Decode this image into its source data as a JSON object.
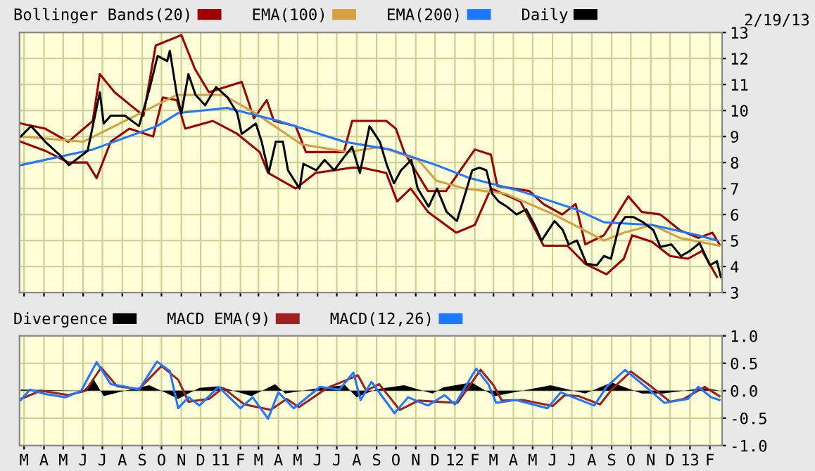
{
  "chart_data": [
    {
      "type": "line",
      "annotations": [
        "2/19/13"
      ],
      "xlim": [
        "2010-02-22",
        "2013-02-20"
      ],
      "xticks": [
        {
          "value": "2010-03-01",
          "label": null
        },
        {
          "value": "2010-04-01",
          "label": null
        },
        {
          "value": "2010-05-01",
          "label": null
        },
        {
          "value": "2010-06-01",
          "label": null
        },
        {
          "value": "2010-07-01",
          "label": null
        },
        {
          "value": "2010-08-01",
          "label": null
        },
        {
          "value": "2010-09-01",
          "label": null
        },
        {
          "value": "2010-10-01",
          "label": null
        },
        {
          "value": "2010-11-01",
          "label": null
        },
        {
          "value": "2010-12-01",
          "label": null
        },
        {
          "value": "2011-01-01",
          "label": null
        },
        {
          "value": "2011-02-01",
          "label": null
        },
        {
          "value": "2011-03-01",
          "label": null
        },
        {
          "value": "2011-04-01",
          "label": null
        },
        {
          "value": "2011-05-01",
          "label": null
        },
        {
          "value": "2011-06-01",
          "label": null
        },
        {
          "value": "2011-07-01",
          "label": null
        },
        {
          "value": "2011-08-01",
          "label": null
        },
        {
          "value": "2011-09-01",
          "label": null
        },
        {
          "value": "2011-10-01",
          "label": null
        },
        {
          "value": "2011-11-01",
          "label": null
        },
        {
          "value": "2011-12-01",
          "label": null
        },
        {
          "value": "2012-01-01",
          "label": null
        },
        {
          "value": "2012-02-01",
          "label": null
        },
        {
          "value": "2012-03-01",
          "label": null
        },
        {
          "value": "2012-04-01",
          "label": null
        },
        {
          "value": "2012-05-01",
          "label": null
        },
        {
          "value": "2012-06-01",
          "label": null
        },
        {
          "value": "2012-07-01",
          "label": null
        },
        {
          "value": "2012-08-01",
          "label": null
        },
        {
          "value": "2012-09-01",
          "label": null
        },
        {
          "value": "2012-10-01",
          "label": null
        },
        {
          "value": "2012-11-01",
          "label": null
        },
        {
          "value": "2012-12-01",
          "label": null
        },
        {
          "value": "2013-01-01",
          "label": null
        },
        {
          "value": "2013-02-01",
          "label": null
        }
      ],
      "ylim": [
        3,
        13
      ],
      "yticks": [
        3,
        4,
        5,
        6,
        7,
        8,
        9,
        10,
        11,
        12,
        13
      ],
      "grid": true,
      "legend": "top",
      "tick_labels": "y",
      "series": [
        {
          "name": "Bollinger Bands(20)",
          "color": "#a00000",
          "x": [
            "2010-02-24",
            "2010-04-03",
            "2010-05-09",
            "2010-06-16",
            "2010-06-27",
            "2010-07-20",
            "2010-09-03",
            "2010-09-22",
            "2010-11-01",
            "2010-11-22",
            "2010-12-14",
            "2011-02-03",
            "2011-02-22",
            "2011-03-14",
            "2011-03-25",
            "2011-04-28",
            "2011-05-14",
            "2011-07-12",
            "2011-07-25",
            "2011-09-16",
            "2011-10-01",
            "2011-10-14",
            "2011-11-20",
            "2011-12-18",
            "2012-02-01",
            "2012-02-26",
            "2012-03-07",
            "2012-04-26",
            "2012-05-18",
            "2012-06-16",
            "2012-07-07",
            "2012-07-22",
            "2012-08-20",
            "2012-09-12",
            "2012-09-27",
            "2012-10-18",
            "2012-11-16",
            "2012-12-16",
            "2013-01-14",
            "2013-02-05",
            "2013-02-16"
          ],
          "values": [
            9.5,
            9.3,
            8.8,
            9.6,
            11.4,
            10.7,
            9.8,
            12.5,
            12.9,
            11.6,
            10.7,
            11.1,
            9.7,
            10.4,
            9.6,
            9.4,
            8.4,
            8.4,
            9.6,
            9.6,
            9.3,
            8.4,
            6.9,
            6.9,
            8.5,
            8.3,
            7.1,
            6.9,
            6.4,
            6.0,
            6.4,
            4.85,
            5.2,
            6.1,
            6.7,
            6.1,
            6.0,
            5.4,
            5.1,
            5.3,
            4.85
          ]
        },
        {
          "color": "#a00000",
          "x": [
            "2010-02-24",
            "2010-04-03",
            "2010-05-09",
            "2010-06-07",
            "2010-06-22",
            "2010-07-14",
            "2010-08-12",
            "2010-09-18",
            "2010-10-03",
            "2010-10-25",
            "2010-11-07",
            "2010-12-20",
            "2011-01-27",
            "2011-03-03",
            "2011-03-16",
            "2011-04-28",
            "2011-05-29",
            "2011-07-25",
            "2011-08-09",
            "2011-09-16",
            "2011-10-03",
            "2011-10-24",
            "2011-11-20",
            "2012-01-03",
            "2012-02-01",
            "2012-02-26",
            "2012-04-12",
            "2012-05-18",
            "2012-06-24",
            "2012-07-22",
            "2012-08-24",
            "2012-09-20",
            "2012-10-03",
            "2012-11-03",
            "2012-12-01",
            "2012-12-29",
            "2013-01-20",
            "2013-02-12"
          ],
          "values": [
            8.8,
            8.45,
            8.0,
            8.0,
            7.4,
            8.8,
            9.3,
            9.0,
            10.5,
            10.4,
            9.3,
            9.6,
            9.1,
            8.4,
            7.6,
            7.0,
            7.6,
            7.8,
            7.8,
            7.6,
            6.5,
            7.0,
            6.1,
            5.3,
            5.6,
            7.0,
            6.5,
            4.8,
            4.8,
            4.1,
            3.7,
            4.3,
            5.2,
            4.95,
            4.4,
            4.3,
            4.6,
            3.6
          ]
        },
        {
          "name": "EMA(100)",
          "color": "#d4a040",
          "x": [
            "2010-02-24",
            "2010-06-01",
            "2010-07-20",
            "2010-10-25",
            "2011-01-05",
            "2011-02-24",
            "2011-05-07",
            "2011-07-18",
            "2011-09-07",
            "2011-11-05",
            "2011-12-03",
            "2012-01-16",
            "2012-03-20",
            "2012-06-03",
            "2012-08-20",
            "2012-09-20",
            "2012-11-03",
            "2012-12-16",
            "2013-02-16"
          ],
          "values": [
            9.0,
            8.8,
            9.4,
            10.6,
            10.6,
            9.9,
            8.7,
            8.4,
            8.6,
            8.1,
            7.3,
            7.0,
            6.8,
            6.0,
            5.0,
            5.3,
            5.6,
            5.1,
            4.8
          ]
        },
        {
          "name": "EMA(200)",
          "color": "#1e78ff",
          "x": [
            "2010-02-24",
            "2010-06-16",
            "2010-09-24",
            "2010-10-27",
            "2011-01-11",
            "2011-04-01",
            "2011-07-12",
            "2011-09-22",
            "2011-12-03",
            "2012-01-24",
            "2012-04-12",
            "2012-07-07",
            "2012-08-20",
            "2012-11-03",
            "2013-01-14",
            "2013-02-12"
          ],
          "values": [
            7.9,
            8.5,
            9.4,
            9.9,
            10.1,
            9.6,
            8.8,
            8.5,
            7.9,
            7.4,
            6.9,
            6.2,
            5.7,
            5.6,
            5.2,
            5.0
          ]
        },
        {
          "name": "Daily",
          "color": "#000000",
          "x": [
            "2010-02-24",
            "2010-03-12",
            "2010-04-03",
            "2010-04-25",
            "2010-05-10",
            "2010-06-08",
            "2010-06-27",
            "2010-07-03",
            "2010-07-14",
            "2010-08-05",
            "2010-08-27",
            "2010-09-12",
            "2010-09-25",
            "2010-10-10",
            "2010-10-14",
            "2010-10-25",
            "2010-11-01",
            "2010-11-12",
            "2010-11-23",
            "2010-12-08",
            "2010-12-25",
            "2011-01-12",
            "2011-01-27",
            "2011-02-03",
            "2011-02-25",
            "2011-03-06",
            "2011-03-17",
            "2011-03-28",
            "2011-04-08",
            "2011-04-16",
            "2011-05-04",
            "2011-05-10",
            "2011-05-30",
            "2011-06-12",
            "2011-06-27",
            "2011-07-12",
            "2011-07-25",
            "2011-08-06",
            "2011-08-21",
            "2011-09-06",
            "2011-09-17",
            "2011-09-28",
            "2011-10-09",
            "2011-10-25",
            "2011-11-04",
            "2011-11-21",
            "2011-12-04",
            "2011-12-19",
            "2012-01-04",
            "2012-01-17",
            "2012-01-28",
            "2012-02-08",
            "2012-02-19",
            "2012-02-28",
            "2012-03-09",
            "2012-03-22",
            "2012-04-06",
            "2012-04-21",
            "2012-05-04",
            "2012-05-15",
            "2012-06-04",
            "2012-06-17",
            "2012-06-26",
            "2012-07-09",
            "2012-07-24",
            "2012-08-09",
            "2012-08-20",
            "2012-08-31",
            "2012-09-13",
            "2012-09-22",
            "2012-10-05",
            "2012-10-20",
            "2012-11-05",
            "2012-11-16",
            "2012-12-03",
            "2012-12-18",
            "2013-01-01",
            "2013-01-16",
            "2013-02-01",
            "2013-02-12",
            "2013-02-18"
          ],
          "values": [
            9.0,
            9.4,
            8.8,
            8.3,
            7.9,
            8.45,
            10.7,
            9.5,
            9.8,
            9.8,
            9.4,
            10.8,
            12.1,
            11.9,
            12.3,
            10.6,
            9.9,
            11.4,
            10.6,
            10.2,
            10.9,
            10.5,
            9.9,
            9.1,
            9.5,
            8.8,
            7.6,
            8.8,
            8.8,
            7.7,
            7.0,
            7.95,
            7.7,
            8.1,
            7.7,
            8.2,
            8.6,
            7.6,
            9.4,
            8.8,
            7.9,
            7.2,
            7.7,
            8.1,
            7.0,
            6.3,
            7.0,
            6.1,
            5.75,
            6.8,
            7.7,
            7.8,
            7.7,
            6.8,
            6.5,
            6.3,
            6.0,
            6.2,
            5.6,
            5.0,
            5.75,
            5.4,
            4.85,
            5.0,
            4.1,
            4.05,
            4.4,
            4.3,
            5.6,
            5.9,
            5.9,
            5.7,
            5.4,
            4.75,
            4.85,
            4.4,
            4.6,
            4.9,
            4.05,
            4.2,
            3.6
          ]
        }
      ]
    },
    {
      "type": "line",
      "xlim": [
        "2010-02-22",
        "2013-02-20"
      ],
      "xticks": [
        {
          "value": "2010-03-01",
          "label": "M"
        },
        {
          "value": "2010-04-01",
          "label": "A"
        },
        {
          "value": "2010-05-01",
          "label": "M"
        },
        {
          "value": "2010-06-01",
          "label": "J"
        },
        {
          "value": "2010-07-01",
          "label": "J"
        },
        {
          "value": "2010-08-01",
          "label": "A"
        },
        {
          "value": "2010-09-01",
          "label": "S"
        },
        {
          "value": "2010-10-01",
          "label": "O"
        },
        {
          "value": "2010-11-01",
          "label": "N"
        },
        {
          "value": "2010-12-01",
          "label": "D"
        },
        {
          "value": "2011-01-01",
          "label": "11"
        },
        {
          "value": "2011-02-01",
          "label": "F"
        },
        {
          "value": "2011-03-01",
          "label": "M"
        },
        {
          "value": "2011-04-01",
          "label": "A"
        },
        {
          "value": "2011-05-01",
          "label": "M"
        },
        {
          "value": "2011-06-01",
          "label": "J"
        },
        {
          "value": "2011-07-01",
          "label": "J"
        },
        {
          "value": "2011-08-01",
          "label": "A"
        },
        {
          "value": "2011-09-01",
          "label": "S"
        },
        {
          "value": "2011-10-01",
          "label": "O"
        },
        {
          "value": "2011-11-01",
          "label": "N"
        },
        {
          "value": "2011-12-01",
          "label": "D"
        },
        {
          "value": "2012-01-01",
          "label": "12"
        },
        {
          "value": "2012-02-01",
          "label": "F"
        },
        {
          "value": "2012-03-01",
          "label": "M"
        },
        {
          "value": "2012-04-01",
          "label": "A"
        },
        {
          "value": "2012-05-01",
          "label": "M"
        },
        {
          "value": "2012-06-01",
          "label": "J"
        },
        {
          "value": "2012-07-01",
          "label": "J"
        },
        {
          "value": "2012-08-01",
          "label": "A"
        },
        {
          "value": "2012-09-01",
          "label": "S"
        },
        {
          "value": "2012-10-01",
          "label": "O"
        },
        {
          "value": "2012-11-01",
          "label": "N"
        },
        {
          "value": "2012-12-01",
          "label": "D"
        },
        {
          "value": "2013-01-01",
          "label": "13"
        },
        {
          "value": "2013-02-01",
          "label": "F"
        }
      ],
      "ylim": [
        -1,
        1
      ],
      "yticks": [
        {
          "value": -1,
          "label": "-1.0"
        },
        {
          "value": -0.5,
          "label": "-0.5"
        },
        {
          "value": 0,
          "label": "0.0"
        },
        {
          "value": 0.5,
          "label": "0.5"
        },
        {
          "value": 1,
          "label": "1.0"
        }
      ],
      "grid": true,
      "legend": "top",
      "series": [
        {
          "name": "Divergence",
          "type": "area",
          "color": "#000000",
          "x": [
            "2010-02-24",
            "2010-06-01",
            "2010-06-18",
            "2010-07-03",
            "2010-08-05",
            "2010-09-12",
            "2010-10-10",
            "2010-10-27",
            "2010-11-29",
            "2010-12-29",
            "2011-02-18",
            "2011-03-27",
            "2011-04-12",
            "2011-06-05",
            "2011-07-14",
            "2011-08-01",
            "2011-09-01",
            "2011-10-14",
            "2011-11-27",
            "2011-12-14",
            "2012-01-27",
            "2012-03-03",
            "2012-05-29",
            "2012-07-22",
            "2012-09-01",
            "2012-10-18",
            "2012-11-20",
            "2013-01-24",
            "2013-02-16"
          ],
          "values": [
            0.02,
            0,
            0.2,
            -0.1,
            0,
            0.1,
            -0.05,
            -0.15,
            0.05,
            0.08,
            -0.1,
            0.12,
            -0.05,
            0.05,
            0.1,
            -0.12,
            0.03,
            0.1,
            -0.05,
            0.06,
            0.15,
            -0.1,
            0.1,
            -0.05,
            0.15,
            -0.05,
            -0.05,
            0.05,
            0
          ]
        },
        {
          "name": "MACD EMA(9)",
          "color": "#a02020",
          "x": [
            "2010-02-24",
            "2010-03-27",
            "2010-05-09",
            "2010-06-05",
            "2010-06-29",
            "2010-07-24",
            "2010-08-27",
            "2010-10-01",
            "2010-10-27",
            "2010-11-12",
            "2010-12-14",
            "2011-01-05",
            "2011-02-07",
            "2011-03-20",
            "2011-04-14",
            "2011-05-03",
            "2011-06-16",
            "2011-08-03",
            "2011-08-16",
            "2011-09-05",
            "2011-10-07",
            "2011-11-05",
            "2011-12-01",
            "2012-01-05",
            "2012-02-10",
            "2012-03-01",
            "2012-03-14",
            "2012-04-16",
            "2012-06-01",
            "2012-06-20",
            "2012-07-12",
            "2012-08-14",
            "2012-09-01",
            "2012-10-01",
            "2012-11-01",
            "2012-12-01",
            "2012-12-22",
            "2013-01-24",
            "2013-02-16"
          ],
          "values": [
            -0.15,
            0,
            -0.08,
            0,
            0.42,
            0.08,
            0.03,
            0.45,
            0.2,
            -0.2,
            -0.15,
            0.05,
            -0.25,
            -0.35,
            -0.15,
            -0.3,
            0.05,
            0.28,
            0.0,
            0.12,
            -0.35,
            -0.18,
            -0.2,
            -0.22,
            0.38,
            0.1,
            -0.18,
            -0.17,
            -0.28,
            -0.08,
            -0.1,
            -0.25,
            0.02,
            0.35,
            0.08,
            -0.2,
            -0.15,
            0.07,
            -0.1
          ]
        },
        {
          "name": "MACD(12,26)",
          "color": "#1e78ff",
          "x": [
            "2010-02-24",
            "2010-03-10",
            "2010-04-03",
            "2010-05-05",
            "2010-05-29",
            "2010-06-22",
            "2010-07-14",
            "2010-08-07",
            "2010-08-27",
            "2010-09-24",
            "2010-10-14",
            "2010-10-27",
            "2010-11-12",
            "2010-11-29",
            "2010-12-29",
            "2011-02-01",
            "2011-02-20",
            "2011-03-16",
            "2011-04-01",
            "2011-04-25",
            "2011-06-05",
            "2011-07-05",
            "2011-07-27",
            "2011-08-07",
            "2011-08-24",
            "2011-09-29",
            "2011-10-20",
            "2011-11-20",
            "2011-12-16",
            "2012-01-01",
            "2012-02-03",
            "2012-02-22",
            "2012-03-05",
            "2012-04-05",
            "2012-05-24",
            "2012-06-14",
            "2012-07-03",
            "2012-08-05",
            "2012-08-24",
            "2012-09-22",
            "2012-10-24",
            "2012-11-22",
            "2012-12-29",
            "2013-01-14",
            "2013-02-03",
            "2013-02-16"
          ],
          "values": [
            -0.17,
            0.02,
            -0.06,
            -0.12,
            0,
            0.52,
            0.12,
            0.07,
            0.02,
            0.53,
            0.36,
            -0.32,
            -0.12,
            -0.27,
            0.07,
            -0.32,
            -0.12,
            -0.51,
            -0.03,
            -0.32,
            0.07,
            0.02,
            0.33,
            -0.17,
            0.16,
            -0.41,
            -0.12,
            -0.27,
            -0.08,
            -0.25,
            0.4,
            0.12,
            -0.22,
            -0.17,
            -0.32,
            -0.03,
            -0.12,
            -0.27,
            0.07,
            0.38,
            0.07,
            -0.22,
            -0.15,
            0.07,
            -0.12,
            -0.17
          ]
        }
      ]
    }
  ]
}
